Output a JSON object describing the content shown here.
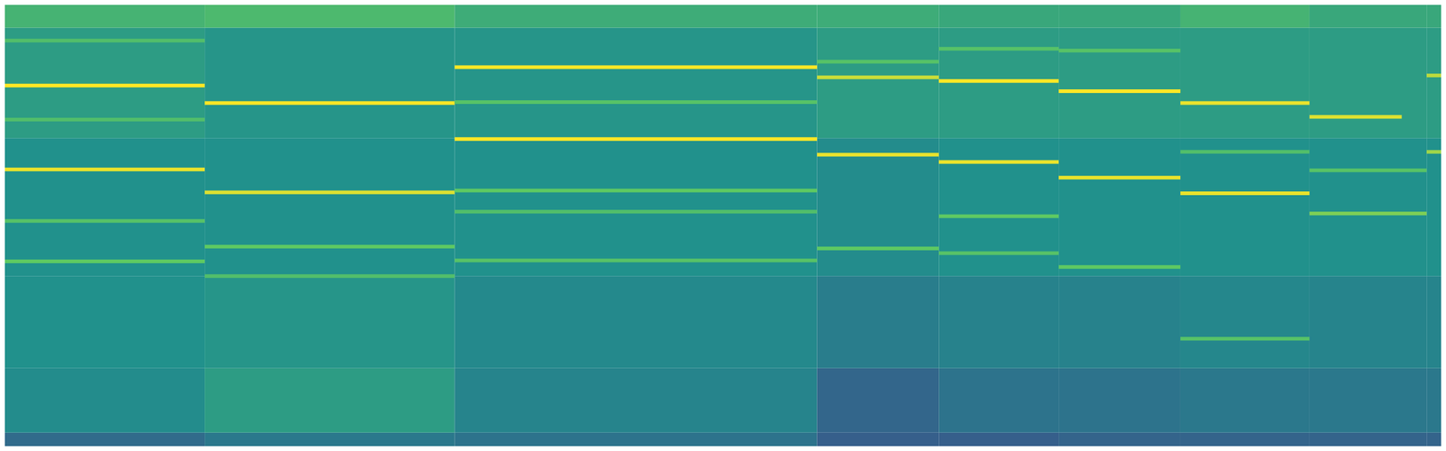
{
  "chart_data": {
    "type": "heatmap",
    "xlim": [
      0,
      1568
    ],
    "ylim": [
      0,
      490
    ],
    "tick_labels": false,
    "color_range": [
      0,
      1
    ],
    "x": [
      0,
      222,
      493,
      886,
      1018,
      1148,
      1280,
      1420,
      1547,
      1568
    ],
    "y": [
      0,
      5,
      20,
      90,
      190,
      340,
      460,
      490
    ],
    "cells": [
      [
        0.05,
        0.05,
        0.05,
        0.05,
        0.05,
        0.05,
        0.05,
        0.05,
        0.05
      ],
      [
        0.35,
        0.4,
        0.38,
        0.3,
        0.3,
        0.32,
        0.32,
        0.32,
        0.32
      ],
      [
        0.48,
        0.55,
        0.45,
        0.33,
        0.38,
        0.38,
        0.4,
        0.4,
        0.4
      ],
      [
        0.5,
        0.52,
        0.47,
        0.42,
        0.44,
        0.44,
        0.46,
        0.45,
        0.45
      ],
      [
        0.5,
        0.5,
        0.5,
        0.48,
        0.5,
        0.5,
        0.5,
        0.5,
        0.5
      ],
      [
        0.55,
        0.52,
        0.52,
        0.55,
        0.55,
        0.55,
        0.55,
        0.55,
        0.55
      ],
      [
        0.65,
        0.68,
        0.62,
        0.62,
        0.6,
        0.6,
        0.65,
        0.6,
        0.6
      ]
    ],
    "tones": [
      {
        "x": [
          0,
          222
        ],
        "y": 397,
        "value": 1
      },
      {
        "x": [
          0,
          222
        ],
        "y": 306,
        "value": 0.97
      },
      {
        "x": [
          0,
          222
        ],
        "y": 360,
        "value": 0.7
      },
      {
        "x": [
          0,
          222
        ],
        "y": 250,
        "value": 0.72
      },
      {
        "x": [
          0,
          222
        ],
        "y": 206,
        "value": 0.75
      },
      {
        "x": [
          0,
          222
        ],
        "y": 446,
        "value": 0.7
      },
      {
        "x": [
          222,
          493
        ],
        "y": 378,
        "value": 1
      },
      {
        "x": [
          222,
          493
        ],
        "y": 281,
        "value": 0.95
      },
      {
        "x": [
          222,
          493
        ],
        "y": 222,
        "value": 0.75
      },
      {
        "x": [
          222,
          493
        ],
        "y": 190,
        "value": 0.7
      },
      {
        "x": [
          493,
          886
        ],
        "y": 417,
        "value": 1
      },
      {
        "x": [
          493,
          886
        ],
        "y": 339,
        "value": 1
      },
      {
        "x": [
          493,
          886
        ],
        "y": 379,
        "value": 0.72
      },
      {
        "x": [
          493,
          886
        ],
        "y": 283,
        "value": 0.75
      },
      {
        "x": [
          493,
          886
        ],
        "y": 260,
        "value": 0.7
      },
      {
        "x": [
          493,
          886
        ],
        "y": 207,
        "value": 0.72
      },
      {
        "x": [
          886,
          1018
        ],
        "y": 406,
        "value": 0.92
      },
      {
        "x": [
          886,
          1018
        ],
        "y": 322,
        "value": 0.97
      },
      {
        "x": [
          886,
          1018
        ],
        "y": 423,
        "value": 0.72
      },
      {
        "x": [
          886,
          1018
        ],
        "y": 220,
        "value": 0.75
      },
      {
        "x": [
          1018,
          1148
        ],
        "y": 402,
        "value": 1
      },
      {
        "x": [
          1018,
          1148
        ],
        "y": 314,
        "value": 0.97
      },
      {
        "x": [
          1018,
          1148
        ],
        "y": 437,
        "value": 0.72
      },
      {
        "x": [
          1018,
          1148
        ],
        "y": 255,
        "value": 0.75
      },
      {
        "x": [
          1018,
          1148
        ],
        "y": 215,
        "value": 0.72
      },
      {
        "x": [
          1148,
          1280
        ],
        "y": 391,
        "value": 1
      },
      {
        "x": [
          1148,
          1280
        ],
        "y": 297,
        "value": 0.97
      },
      {
        "x": [
          1148,
          1280
        ],
        "y": 435,
        "value": 0.72
      },
      {
        "x": [
          1148,
          1280
        ],
        "y": 200,
        "value": 0.75
      },
      {
        "x": [
          1280,
          1420
        ],
        "y": 378,
        "value": 0.97
      },
      {
        "x": [
          1280,
          1420
        ],
        "y": 280,
        "value": 0.97
      },
      {
        "x": [
          1280,
          1420
        ],
        "y": 325,
        "value": 0.7
      },
      {
        "x": [
          1280,
          1420
        ],
        "y": 122,
        "value": 0.72
      },
      {
        "x": [
          1420,
          1520
        ],
        "y": 363,
        "value": 0.95
      },
      {
        "x": [
          1420,
          1547
        ],
        "y": 258,
        "value": 0.8
      },
      {
        "x": [
          1420,
          1547
        ],
        "y": 305,
        "value": 0.72
      },
      {
        "x": [
          1547,
          1568
        ],
        "y": 408,
        "value": 0.9
      },
      {
        "x": [
          1547,
          1568
        ],
        "y": 325,
        "value": 0.85
      }
    ]
  }
}
